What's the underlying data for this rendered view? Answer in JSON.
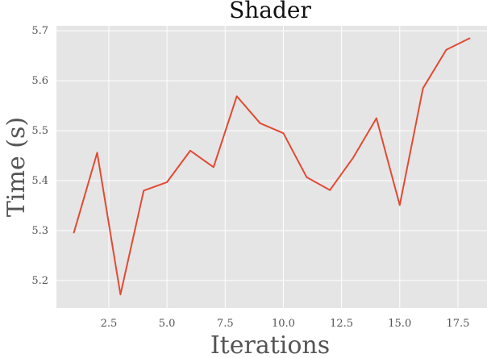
{
  "chart_data": {
    "type": "line",
    "title": "Shader",
    "xlabel": "Iterations",
    "ylabel": "Time (s)",
    "xlim": [
      0.25,
      18.75
    ],
    "ylim": [
      5.145,
      5.71
    ],
    "grid": true,
    "xticks": [
      2.5,
      5.0,
      7.5,
      10.0,
      12.5,
      15.0,
      17.5
    ],
    "xtick_labels": [
      "2.5",
      "5.0",
      "7.5",
      "10.0",
      "12.5",
      "15.0",
      "17.5"
    ],
    "yticks": [
      5.2,
      5.3,
      5.4,
      5.5,
      5.6,
      5.7
    ],
    "ytick_labels": [
      "5.2",
      "5.3",
      "5.4",
      "5.5",
      "5.6",
      "5.7"
    ],
    "colors": {
      "line": "#E24A33",
      "plot_background": "#E5E5E5",
      "grid": "#FFFFFF"
    },
    "series": [
      {
        "x": [
          1,
          2,
          3,
          4,
          5,
          6,
          7,
          8,
          9,
          10,
          11,
          12,
          13,
          14,
          15,
          16,
          17,
          18
        ],
        "values": [
          5.296,
          5.456,
          5.172,
          5.38,
          5.397,
          5.46,
          5.427,
          5.569,
          5.515,
          5.495,
          5.407,
          5.381,
          5.446,
          5.525,
          5.351,
          5.585,
          5.662,
          5.685
        ]
      }
    ]
  }
}
